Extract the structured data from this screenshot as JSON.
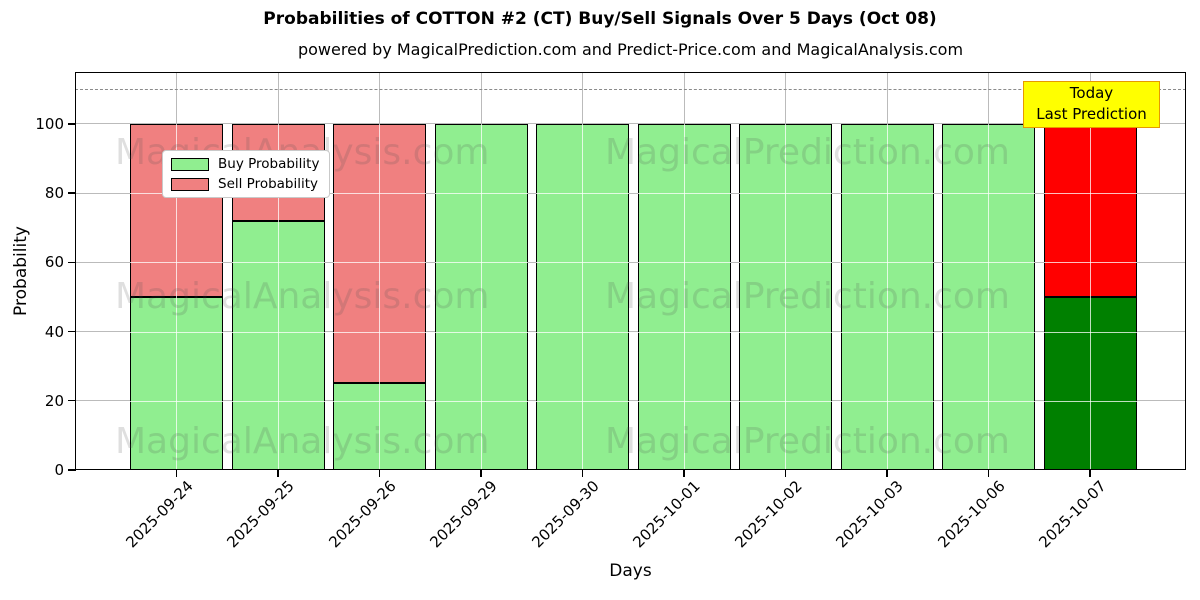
{
  "figure": {
    "title": "Probabilities of COTTON #2 (CT) Buy/Sell Signals Over 5 Days (Oct 08)",
    "subtitle": "powered by MagicalPrediction.com and Predict-Price.com and MagicalAnalysis.com"
  },
  "chart_data": {
    "type": "bar",
    "stacked": true,
    "title": "Probabilities of COTTON #2 (CT) Buy/Sell Signals Over 5 Days (Oct 08)",
    "subtitle": "powered by MagicalPrediction.com and Predict-Price.com and MagicalAnalysis.com",
    "xlabel": "Days",
    "ylabel": "Probability",
    "categories": [
      "2025-09-24",
      "2025-09-25",
      "2025-09-26",
      "2025-09-29",
      "2025-09-30",
      "2025-10-01",
      "2025-10-02",
      "2025-10-03",
      "2025-10-06",
      "2025-10-07"
    ],
    "series": [
      {
        "name": "Buy Probability",
        "color": "#90EE90",
        "today_color": "#008000",
        "values": [
          50,
          72,
          25,
          100,
          100,
          100,
          100,
          100,
          100,
          50
        ]
      },
      {
        "name": "Sell Probability",
        "color": "#F08080",
        "today_color": "#FF0000",
        "values": [
          50,
          28,
          75,
          0,
          0,
          0,
          0,
          0,
          0,
          50
        ]
      }
    ],
    "today_index": 9,
    "ylim": [
      0,
      115
    ],
    "yticks": [
      0,
      20,
      40,
      60,
      80,
      100
    ],
    "grid": true,
    "legend_position": "upper left",
    "dashed_line_y": 110,
    "bar_edge_color": "#000000"
  },
  "legend": {
    "items": [
      {
        "label": "Buy Probability",
        "color": "#90EE90"
      },
      {
        "label": "Sell Probability",
        "color": "#F08080"
      }
    ]
  },
  "annotation": {
    "line1": "Today",
    "line2": "Last Prediction",
    "bg": "#FFFF00",
    "border": "#E69A00"
  },
  "watermarks": {
    "left": "MagicalAnalysis.com",
    "right": "MagicalPrediction.com"
  }
}
